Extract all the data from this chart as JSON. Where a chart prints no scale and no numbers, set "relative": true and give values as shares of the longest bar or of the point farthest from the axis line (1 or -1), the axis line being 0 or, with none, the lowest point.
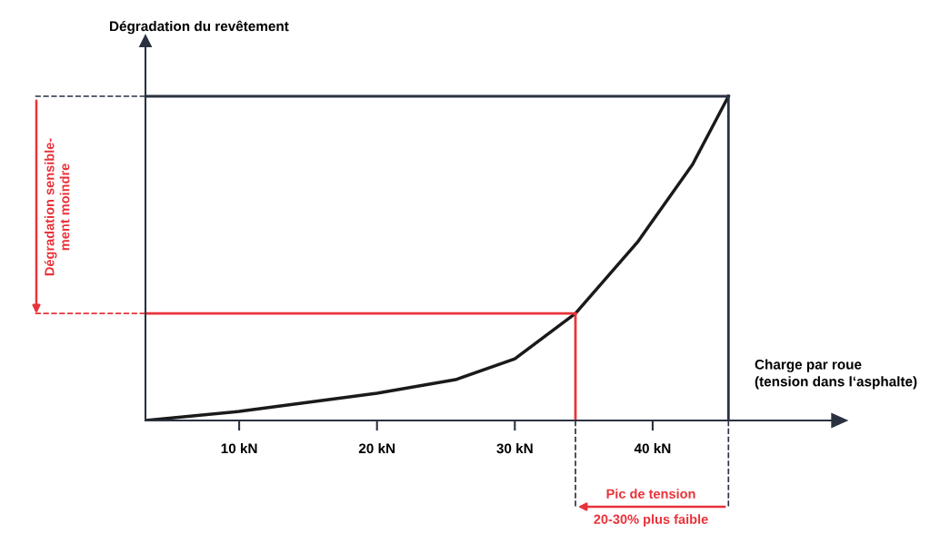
{
  "chart_data": {
    "type": "line",
    "relative": true,
    "xlabel": "Charge par roue\n(tension dans l‘asphalte)",
    "ylabel": "Dégradation du revêtement",
    "x": [
      3.2,
      10,
      20,
      25.7,
      30,
      34.4,
      38.9,
      42.9,
      45.5
    ],
    "series": [
      {
        "color": "#1a1a1a",
        "values": [
          0,
          0.028,
          0.084,
          0.126,
          0.19,
          0.33,
          0.55,
          0.79,
          1.0
        ]
      }
    ],
    "xlim": [
      3.2,
      53
    ],
    "xticks": [
      {
        "value": 10,
        "label": "10 kN"
      },
      {
        "value": 20,
        "label": "20 kN"
      },
      {
        "value": 30,
        "label": "30 kN"
      },
      {
        "value": 40,
        "label": "40 kN"
      }
    ],
    "tick_labels": "x",
    "grid": false,
    "marker": "none",
    "line_style": "solid",
    "ref_lines": [
      {
        "axis": "y",
        "value": 1.0,
        "color": "#2a3140"
      },
      {
        "axis": "y",
        "value": 0.33,
        "color": "#e8333a"
      },
      {
        "axis": "x",
        "value": 34.4,
        "color": "#e8333a"
      },
      {
        "axis": "x",
        "value": 45.5,
        "color": "#2a3140"
      }
    ],
    "annotations": [
      "Dégradation sensible-\nment moindre",
      "Pic de tension\n20-30% plus faible"
    ]
  }
}
